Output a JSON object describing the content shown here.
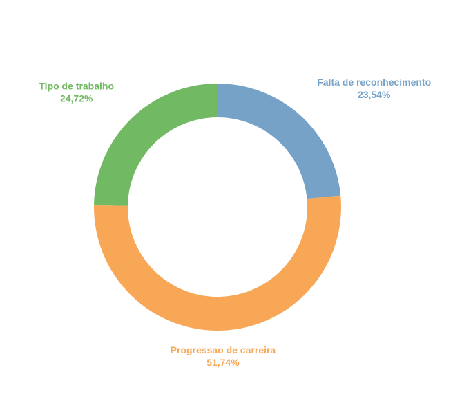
{
  "chart_data": {
    "type": "pie",
    "donut": true,
    "title": "",
    "slices": [
      {
        "label": "Falta de reconhecimento",
        "value_text": "23,54%",
        "value": 23.54,
        "color": "#76A2C8"
      },
      {
        "label": "Progressao de carreira",
        "value_text": "51,74%",
        "value": 51.74,
        "color": "#F8A756"
      },
      {
        "label": "Tipo de trabalho",
        "value_text": "24,72%",
        "value": 24.72,
        "color": "#71B963"
      }
    ],
    "start_angle": "12 o'clock",
    "direction": "clockwise",
    "legend": "none",
    "divider_color": "#e8e8e8"
  }
}
